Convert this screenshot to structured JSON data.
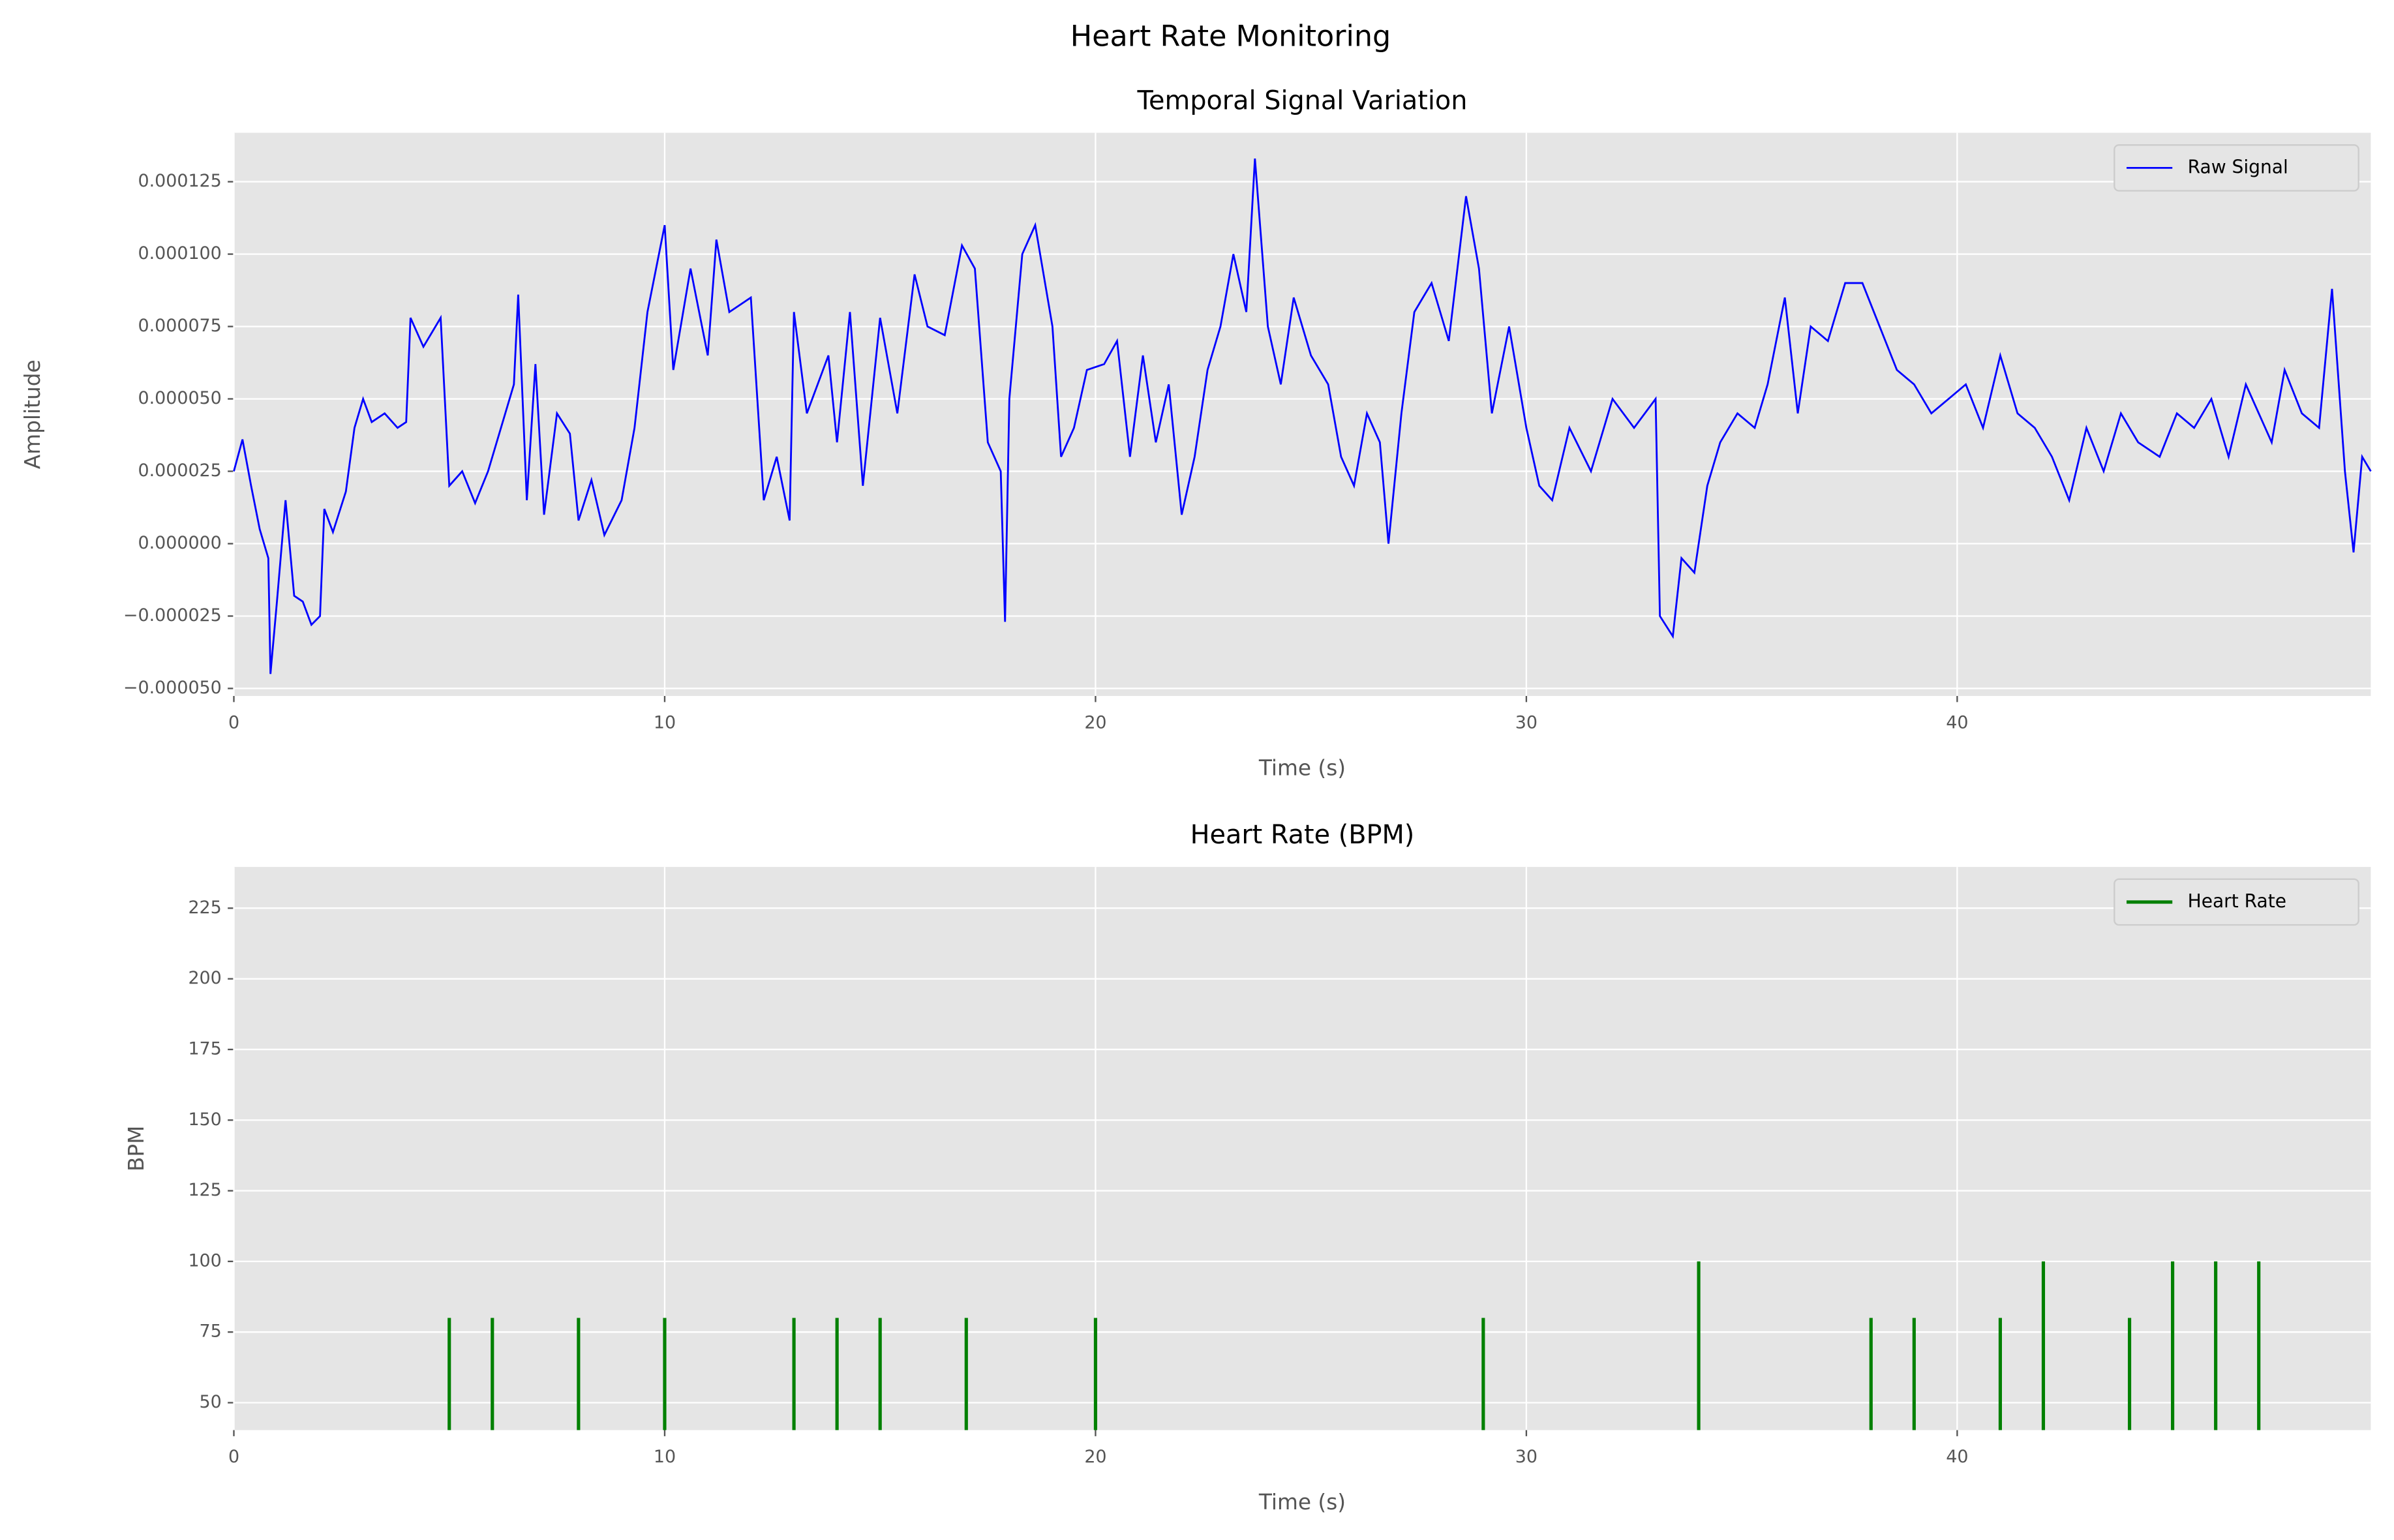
{
  "title": "Heart Rate Monitoring",
  "chart_data": [
    {
      "type": "line",
      "title": "Temporal Signal Variation",
      "xlabel": "Time (s)",
      "ylabel": "Amplitude",
      "x": [
        0,
        0.2,
        0.4,
        0.6,
        0.8,
        0.85,
        1.0,
        1.2,
        1.4,
        1.6,
        1.8,
        2.0,
        2.1,
        2.3,
        2.6,
        2.8,
        3.0,
        3.2,
        3.5,
        3.8,
        4.0,
        4.1,
        4.4,
        4.8,
        5.0,
        5.3,
        5.6,
        5.9,
        6.2,
        6.5,
        6.6,
        6.8,
        7.0,
        7.2,
        7.5,
        7.8,
        8.0,
        8.3,
        8.6,
        9.0,
        9.3,
        9.6,
        10.0,
        10.2,
        10.6,
        11.0,
        11.2,
        11.5,
        12.0,
        12.3,
        12.6,
        12.9,
        13.0,
        13.3,
        13.8,
        14.0,
        14.3,
        14.6,
        15.0,
        15.4,
        15.8,
        16.1,
        16.5,
        16.9,
        17.2,
        17.5,
        17.8,
        17.9,
        18.0,
        18.3,
        18.6,
        19.0,
        19.2,
        19.5,
        19.8,
        20.2,
        20.5,
        20.8,
        21.1,
        21.4,
        21.7,
        22.0,
        22.3,
        22.6,
        22.9,
        23.2,
        23.5,
        23.7,
        24.0,
        24.3,
        24.6,
        25.0,
        25.4,
        25.7,
        26.0,
        26.3,
        26.6,
        26.8,
        27.1,
        27.4,
        27.8,
        28.2,
        28.6,
        28.9,
        29.2,
        29.6,
        30.0,
        30.3,
        30.6,
        31.0,
        31.5,
        32.0,
        32.5,
        33.0,
        33.1,
        33.4,
        33.6,
        33.9,
        34.2,
        34.5,
        34.9,
        35.3,
        35.6,
        36.0,
        36.3,
        36.6,
        37.0,
        37.4,
        37.8,
        38.2,
        38.6,
        39.0,
        39.4,
        39.8,
        40.2,
        40.6,
        41.0,
        41.4,
        41.8,
        42.2,
        42.6,
        43.0,
        43.4,
        43.8,
        44.2,
        44.7,
        45.1,
        45.5,
        45.9,
        46.3,
        46.7,
        47.0,
        47.3,
        47.6,
        48.0,
        48.4,
        48.7,
        49.0,
        49.2,
        49.4,
        49.6
      ],
      "series": [
        {
          "name": "Raw Signal",
          "color": "#0000ff",
          "values": [
            2.5e-05,
            3.6e-05,
            2e-05,
            5e-06,
            -5e-06,
            -4.5e-05,
            -2e-05,
            1.5e-05,
            -1.8e-05,
            -2e-05,
            -2.8e-05,
            -2.5e-05,
            1.2e-05,
            4e-06,
            1.8e-05,
            4e-05,
            5e-05,
            4.2e-05,
            4.5e-05,
            4e-05,
            4.2e-05,
            7.8e-05,
            6.8e-05,
            7.8e-05,
            2e-05,
            2.5e-05,
            1.4e-05,
            2.5e-05,
            4e-05,
            5.5e-05,
            8.6e-05,
            1.5e-05,
            6.2e-05,
            1e-05,
            4.5e-05,
            3.8e-05,
            8e-06,
            2.2e-05,
            3e-06,
            1.5e-05,
            4e-05,
            8e-05,
            0.00011,
            6e-05,
            9.5e-05,
            6.5e-05,
            0.000105,
            8e-05,
            8.5e-05,
            1.5e-05,
            3e-05,
            8e-06,
            8e-05,
            4.5e-05,
            6.5e-05,
            3.5e-05,
            8e-05,
            2e-05,
            7.8e-05,
            4.5e-05,
            9.3e-05,
            7.5e-05,
            7.2e-05,
            0.000103,
            9.5e-05,
            3.5e-05,
            2.5e-05,
            -2.7e-05,
            5e-05,
            0.0001,
            0.00011,
            7.5e-05,
            3e-05,
            4e-05,
            6e-05,
            6.2e-05,
            7e-05,
            3e-05,
            6.5e-05,
            3.5e-05,
            5.5e-05,
            1e-05,
            3e-05,
            6e-05,
            7.5e-05,
            0.0001,
            8e-05,
            0.000133,
            7.5e-05,
            5.5e-05,
            8.5e-05,
            6.5e-05,
            5.5e-05,
            3e-05,
            2e-05,
            4.5e-05,
            3.5e-05,
            0,
            4.5e-05,
            8e-05,
            9e-05,
            7e-05,
            0.00012,
            9.5e-05,
            4.5e-05,
            7.5e-05,
            4e-05,
            2e-05,
            1.5e-05,
            4e-05,
            2.5e-05,
            5e-05,
            4e-05,
            5e-05,
            -2.5e-05,
            -3.2e-05,
            -5e-06,
            -1e-05,
            2e-05,
            3.5e-05,
            4.5e-05,
            4e-05,
            5.5e-05,
            8.5e-05,
            4.5e-05,
            7.5e-05,
            7e-05,
            9e-05,
            9e-05,
            7.5e-05,
            6e-05,
            5.5e-05,
            4.5e-05,
            5e-05,
            5.5e-05,
            4e-05,
            6.5e-05,
            4.5e-05,
            4e-05,
            3e-05,
            1.5e-05,
            4e-05,
            2.5e-05,
            4.5e-05,
            3.5e-05,
            3e-05,
            4.5e-05,
            4e-05,
            5e-05,
            3e-05,
            5.5e-05,
            4.5e-05,
            3.5e-05,
            6e-05,
            4.5e-05,
            4e-05,
            8.8e-05,
            2.5e-05,
            -3e-06,
            3e-05,
            2.5e-05
          ]
        }
      ],
      "xlim": [
        0,
        49.6
      ],
      "ylim": [
        -5.26e-05,
        0.0001419
      ],
      "xticks": [
        0,
        10,
        20,
        30,
        40
      ],
      "yticks": [
        {
          "value": -5e-05,
          "label": "−0.000050"
        },
        {
          "value": -2.5e-05,
          "label": "−0.000025"
        },
        {
          "value": 0,
          "label": "0.000000"
        },
        {
          "value": 2.5e-05,
          "label": "0.000025"
        },
        {
          "value": 5e-05,
          "label": "0.000050"
        },
        {
          "value": 7.5e-05,
          "label": "0.000075"
        },
        {
          "value": 0.0001,
          "label": "0.000100"
        },
        {
          "value": 0.000125,
          "label": "0.000125"
        }
      ],
      "grid": true,
      "legend": "upper right"
    },
    {
      "type": "stem",
      "title": "Heart Rate (BPM)",
      "xlabel": "Time (s)",
      "ylabel": "BPM",
      "x": [
        5,
        6,
        8,
        10,
        13,
        14,
        15,
        17,
        20,
        29,
        34,
        38,
        39,
        41,
        42,
        44,
        45,
        46,
        47
      ],
      "series": [
        {
          "name": "Heart Rate",
          "color": "#008000",
          "values": [
            80,
            80,
            80,
            80,
            80,
            80,
            80,
            80,
            80,
            80,
            100,
            80,
            80,
            80,
            100,
            80,
            100,
            100,
            100
          ]
        }
      ],
      "xlim": [
        0,
        49.6
      ],
      "ylim": [
        40.3,
        239.6
      ],
      "xticks": [
        0,
        10,
        20,
        30,
        40
      ],
      "yticks": [
        50,
        75,
        100,
        125,
        150,
        175,
        200,
        225
      ],
      "grid": true,
      "legend": "upper right"
    }
  ]
}
